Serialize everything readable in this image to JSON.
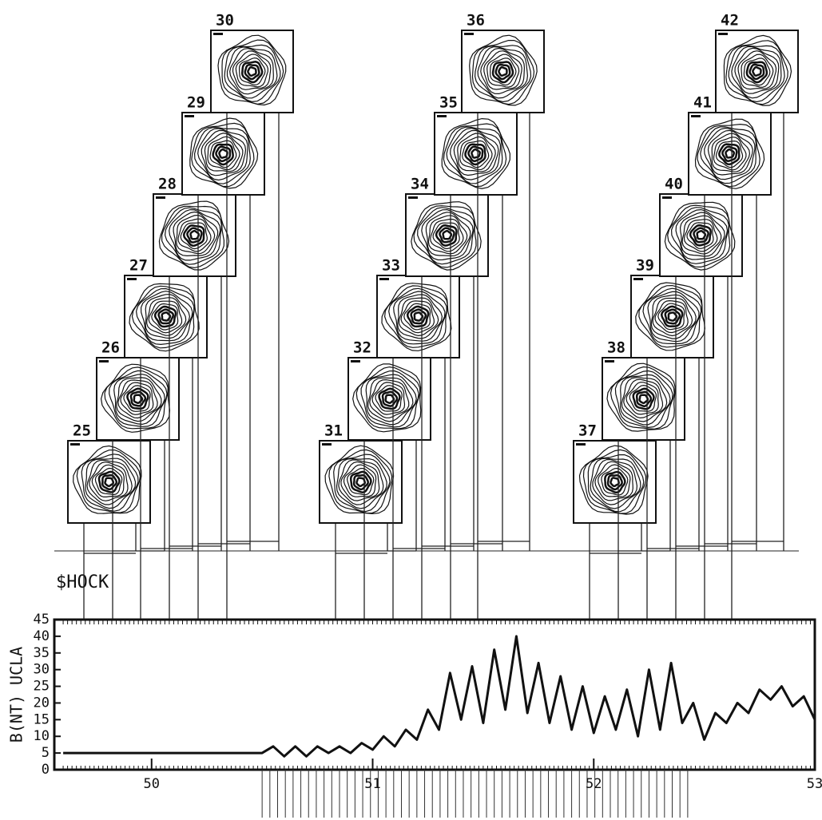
{
  "chart_data": {
    "type": "line",
    "panels": [
      "25",
      "26",
      "27",
      "28",
      "29",
      "30",
      "31",
      "32",
      "33",
      "34",
      "35",
      "36",
      "37",
      "38",
      "39",
      "40",
      "41",
      "42"
    ],
    "annotation": "$HOCK",
    "y_label": "B(NT) UCLA",
    "x": [
      49.6,
      49.65,
      49.7,
      49.75,
      49.8,
      49.85,
      49.9,
      49.95,
      50,
      50.05,
      50.1,
      50.15,
      50.2,
      50.25,
      50.3,
      50.35,
      50.4,
      50.45,
      50.5,
      50.55,
      50.6,
      50.65,
      50.7,
      50.75,
      50.8,
      50.85,
      50.9,
      50.95,
      51,
      51.05,
      51.1,
      51.15,
      51.2,
      51.25,
      51.3,
      51.35,
      51.4,
      51.45,
      51.5,
      51.55,
      51.6,
      51.65,
      51.7,
      51.75,
      51.8,
      51.85,
      51.9,
      51.95,
      52,
      52.05,
      52.1,
      52.15,
      52.2,
      52.25,
      52.3,
      52.35,
      52.4,
      52.45,
      52.5,
      52.55,
      52.6,
      52.65,
      52.7,
      52.75,
      52.8,
      52.85,
      52.9,
      52.95,
      53
    ],
    "values": [
      5,
      5,
      5,
      5,
      5,
      5,
      5,
      5,
      5,
      5,
      5,
      5,
      5,
      5,
      5,
      5,
      5,
      5,
      5,
      7,
      4,
      7,
      4,
      7,
      5,
      7,
      5,
      8,
      6,
      10,
      7,
      12,
      9,
      18,
      12,
      29,
      15,
      31,
      14,
      36,
      18,
      40,
      17,
      32,
      14,
      28,
      12,
      25,
      11,
      22,
      12,
      24,
      10,
      30,
      12,
      32,
      14,
      20,
      9,
      17,
      14,
      20,
      17,
      24,
      21,
      25,
      19,
      22,
      15
    ],
    "color": "#111111",
    "xlim": [
      49.56,
      53
    ],
    "ylim": [
      0,
      45
    ],
    "xticks": [
      50,
      51,
      52,
      53
    ],
    "yticks": [
      0,
      5,
      10,
      15,
      20,
      25,
      30,
      35,
      40,
      45
    ]
  }
}
